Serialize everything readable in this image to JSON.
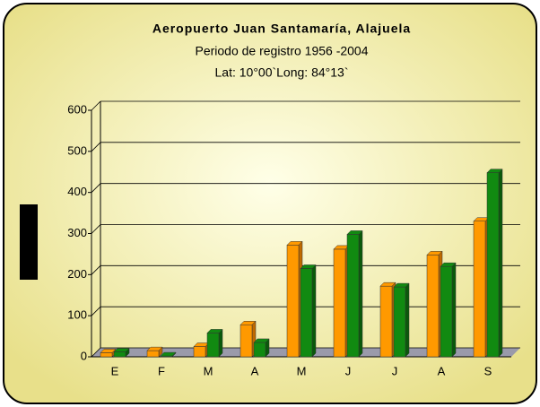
{
  "chart_data": {
    "type": "bar",
    "title": "Aeropuerto Juan Santamaría, Alajuela",
    "subtitle": [
      "Periodo de registro 1956 -2004",
      "Lat: 10°00`Long: 84°13`"
    ],
    "categories": [
      "E",
      "F",
      "M",
      "A",
      "M",
      "J",
      "J",
      "A",
      "S"
    ],
    "series": [
      {
        "color": "#ff9900",
        "values": [
          10,
          15,
          25,
          78,
          272,
          262,
          172,
          248,
          330
        ]
      },
      {
        "color": "#118a11",
        "values": [
          12,
          2,
          58,
          35,
          215,
          298,
          170,
          220,
          448
        ]
      }
    ],
    "ylim": [
      0,
      600
    ],
    "yticks": [
      0,
      100,
      200,
      300,
      400,
      500,
      600
    ],
    "grid": true
  }
}
